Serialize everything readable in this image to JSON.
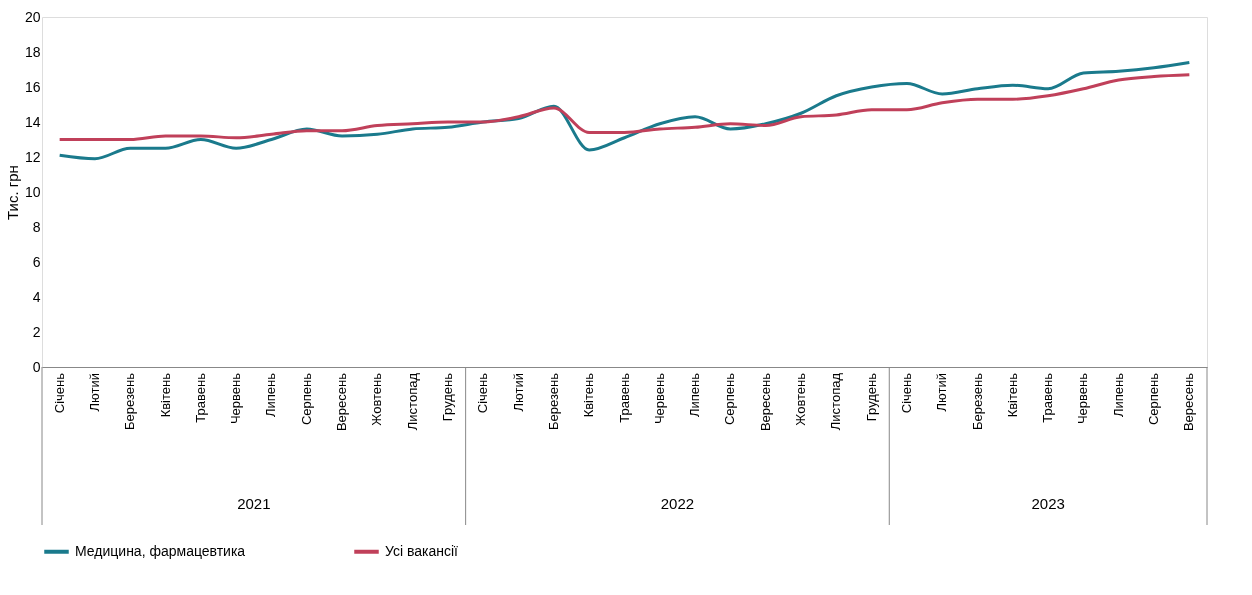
{
  "chart_data": {
    "type": "line",
    "ylabel": "Тис. грн",
    "categories": [
      "Січень",
      "Лютий",
      "Березень",
      "Квітень",
      "Травень",
      "Червень",
      "Липень",
      "Серпень",
      "Вересень",
      "Жовтень",
      "Листопад",
      "Грудень",
      "Січень",
      "Лютий",
      "Березень",
      "Квітень",
      "Травень",
      "Червень",
      "Липень",
      "Серпень",
      "Вересень",
      "Жовтень",
      "Листопад",
      "Грудень",
      "Січень",
      "Лютий",
      "Березень",
      "Квітень",
      "Травень",
      "Червень",
      "Липень",
      "Серпень",
      "Вересень"
    ],
    "series": [
      {
        "name": "Медицина, фармацевтика",
        "color": "#1a7a8c",
        "values": [
          12.1,
          11.9,
          12.5,
          12.5,
          13.0,
          12.5,
          13.0,
          13.6,
          13.2,
          13.3,
          13.6,
          13.7,
          14.0,
          14.2,
          14.9,
          12.4,
          13.1,
          13.9,
          14.3,
          13.6,
          13.9,
          14.5,
          15.5,
          16.0,
          16.2,
          15.6,
          15.9,
          16.1,
          15.9,
          16.8,
          16.9,
          17.1,
          17.4
        ]
      },
      {
        "name": "Усі вакансії",
        "color": "#c0405a",
        "values": [
          13.0,
          13.0,
          13.0,
          13.2,
          13.2,
          13.1,
          13.3,
          13.5,
          13.5,
          13.8,
          13.9,
          14.0,
          14.0,
          14.3,
          14.8,
          13.4,
          13.4,
          13.6,
          13.7,
          13.9,
          13.8,
          14.3,
          14.4,
          14.7,
          14.7,
          15.1,
          15.3,
          15.3,
          15.5,
          15.9,
          16.4,
          16.6,
          16.7
        ]
      }
    ],
    "annotations": [
      "2021",
      "2022",
      "2023"
    ],
    "ylim": [
      0,
      20
    ],
    "yticks": [
      0,
      2,
      4,
      6,
      8,
      10,
      12,
      14,
      16,
      18,
      20
    ],
    "grid": false,
    "legend": "bottom",
    "line_style": "solid",
    "marker": "none"
  }
}
